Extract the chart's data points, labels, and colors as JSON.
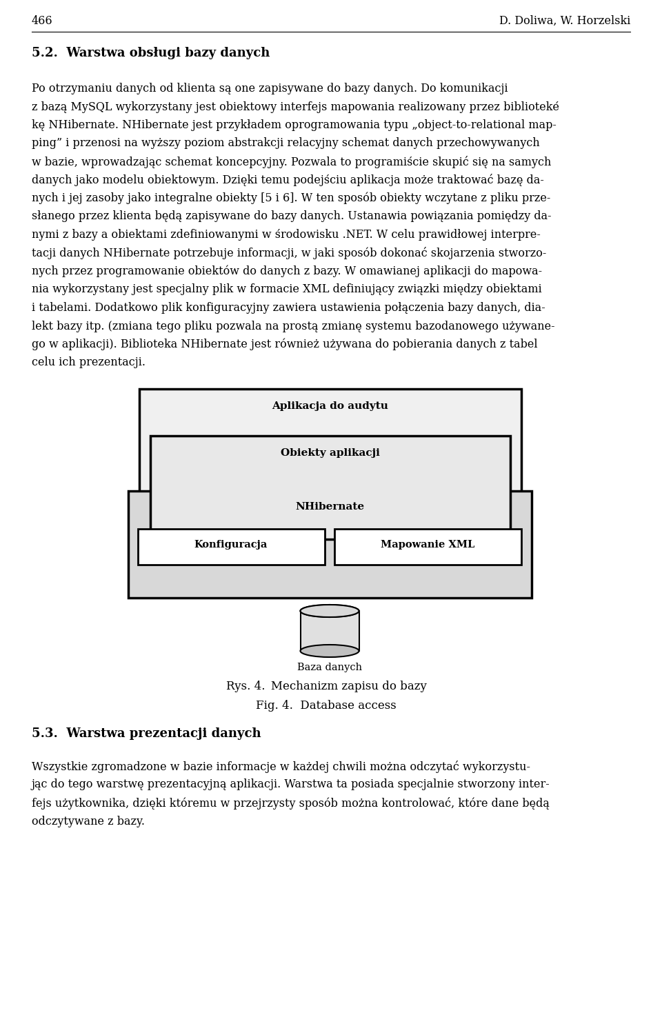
{
  "page_number": "466",
  "header_right": "D. Doliwa, W. Horzelski",
  "section_title": "5.2.  Warstwa obsługi bazy danych",
  "body_lines": [
    "Po otrzymaniu danych od klienta są one zapisywane do bazy danych. Do komunikacji",
    "z bazą MySQL wykorzystany jest obiektowy interfejs mapowania realizowany przez biblioteké",
    "kę NHibernate. NHibernate jest przykładem oprogramowania typu „object-to-relational map-",
    "ping” i przenosi na wyższy poziom abstrakcji relacyjny schemat danych przechowywanych",
    "w bazie, wprowadzając schemat koncepcyjny. Pozwala to programiście skupić się na samych",
    "danych jako modelu obiektowym. Dzięki temu podejściu aplikacja może traktować bazę da-",
    "nych i jej zasoby jako integralne obiekty [5 i 6]. W ten sposób obiekty wczytane z pliku prze-",
    "słanego przez klienta będą zapisywane do bazy danych. Ustanawia powiązania pomiędzy da-",
    "nymi z bazy a obiektami zdefiniowanymi w środowisku .NET. W celu prawidłowej interpre-",
    "tacji danych NHibernate potrzebuje informacji, w jaki sposób dokonać skojarzenia stworzo-",
    "nych przez programowanie obiektów do danych z bazy. W omawianej aplikacji do mapowa-",
    "nia wykorzystany jest specjalny plik w formacie XML definiujący związki między obiektami",
    "i tabelami. Dodatkowo plik konfiguracyjny zawiera ustawienia połączenia bazy danych, dia-",
    "lekt bazy itp. (zmiana tego pliku pozwala na prostą zmianę systemu bazodanowego używane-",
    "go w aplikacji). Biblioteka NHibernate jest również używana do pobierania danych z tabel",
    "celu ich prezentacji."
  ],
  "diagram_labels": {
    "top": "Aplikacja do audytu",
    "middle": "Obiekty aplikacji",
    "nhibernate": "NHibernate",
    "left": "Konfiguracja",
    "right": "Mapowanie XML",
    "db": "Baza danych"
  },
  "fig_caption_pl": "Rys. 4. Mechanizm zapisu do bazy",
  "fig_caption_en": "Fig. 4.  Database access",
  "section2_title": "5.3.  Warstwa prezentacji danych",
  "body2_lines": [
    "Wszystkie zgromadzone w bazie informacje w każdej chwili można odczytać wykorzystu-",
    "jąc do tego warstwę prezentacyjną aplikacji. Warstwa ta posiada specjalnie stworzony inter-",
    "fejs użytkownika, dzięki któremu w przejrzysty sposób można kontrolować, które dane będą",
    "odczytywane z bazy."
  ],
  "background_color": "#ffffff",
  "text_color": "#000000"
}
